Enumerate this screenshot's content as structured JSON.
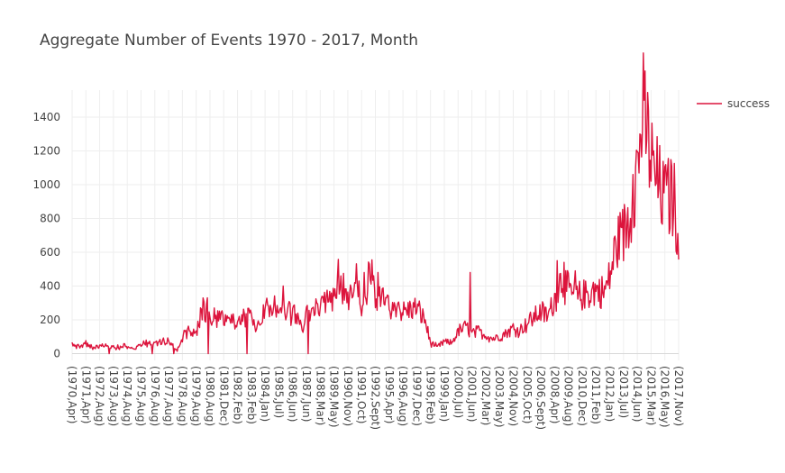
{
  "chart_data": {
    "type": "line",
    "title": "Aggregate Number of Events 1970 - 2017, Month",
    "xlabel": "",
    "ylabel": "",
    "ylim": [
      -40,
      1560
    ],
    "yticks": [
      0,
      200,
      400,
      600,
      800,
      1000,
      1200,
      1400
    ],
    "grid": true,
    "legend": "top-right",
    "series_color": "#dc143c",
    "x_tick_labels": [
      "(1970,Apr)",
      "(1971,Apr)",
      "(1972,Aug)",
      "(1973,Aug)",
      "(1974,Aug)",
      "(1975,Aug)",
      "(1976,Aug)",
      "(1977,Aug)",
      "(1978,Aug)",
      "(1979,Aug)",
      "(1980,Aug)",
      "(1981,Dec)",
      "(1982,Feb)",
      "(1983,Feb)",
      "(1984,Jan)",
      "(1985,Jul)",
      "(1986,Jun)",
      "(1987,Jun)",
      "(1988,Mar)",
      "(1989,May)",
      "(1990,Nov)",
      "(1991,Oct)",
      "(1992,Sept)",
      "(1995,Apr)",
      "(1996,Aug)",
      "(1997,Dec)",
      "(1998,Feb)",
      "(1999,Jan)",
      "(2000,Jul)",
      "(2001,Jun)",
      "(2002,Mar)",
      "(2003,May)",
      "(2004,Nov)",
      "(2005,Oct)",
      "(2006,Sept)",
      "(2008,Apr)",
      "(2009,Aug)",
      "(2010,Dec)",
      "(2011,Feb)",
      "(2012,Jan)",
      "(2013,Jul)",
      "(2014,Jun)",
      "(2015,Mar)",
      "(2016,May)",
      "(2017,Nov)"
    ],
    "series": [
      {
        "name": "success",
        "anchors": [
          [
            0,
            55
          ],
          [
            0.4,
            35
          ],
          [
            1,
            55
          ],
          [
            1.5,
            40
          ],
          [
            2,
            45
          ],
          [
            3,
            35
          ],
          [
            4,
            45
          ],
          [
            4.5,
            25
          ],
          [
            5,
            60
          ],
          [
            6,
            55
          ],
          [
            7,
            75
          ],
          [
            7.6,
            20
          ],
          [
            8,
            100
          ],
          [
            8.5,
            140
          ],
          [
            9,
            130
          ],
          [
            9.5,
            270
          ],
          [
            10,
            190
          ],
          [
            11,
            200
          ],
          [
            12,
            200
          ],
          [
            13,
            230
          ],
          [
            13.3,
            120
          ],
          [
            14,
            260
          ],
          [
            14.6,
            320
          ],
          [
            15,
            230
          ],
          [
            16,
            240
          ],
          [
            16.8,
            150
          ],
          [
            17,
            240
          ],
          [
            18,
            280
          ],
          [
            19,
            340
          ],
          [
            19.3,
            450
          ],
          [
            20,
            310
          ],
          [
            20.6,
            430
          ],
          [
            21,
            290
          ],
          [
            21.7,
            470
          ],
          [
            22,
            300
          ],
          [
            22.6,
            380
          ],
          [
            23,
            260
          ],
          [
            24,
            250
          ],
          [
            25,
            270
          ],
          [
            25.6,
            200
          ],
          [
            26,
            60
          ],
          [
            26.5,
            40
          ],
          [
            27,
            70
          ],
          [
            27.5,
            60
          ],
          [
            28,
            130
          ],
          [
            28.6,
            160
          ],
          [
            29,
            120
          ],
          [
            29.5,
            130
          ],
          [
            30,
            110
          ],
          [
            30.5,
            90
          ],
          [
            31,
            100
          ],
          [
            32,
            150
          ],
          [
            32.5,
            140
          ],
          [
            33,
            180
          ],
          [
            34,
            250
          ],
          [
            34.5,
            220
          ],
          [
            35,
            320
          ],
          [
            35.5,
            450
          ],
          [
            36,
            370
          ],
          [
            36.6,
            330
          ],
          [
            37,
            340
          ],
          [
            38,
            380
          ],
          [
            38.6,
            360
          ],
          [
            39,
            450
          ],
          [
            39.5,
            650
          ],
          [
            40,
            700
          ],
          [
            40.5,
            850
          ],
          [
            41,
            1100
          ],
          [
            41.4,
            1450
          ],
          [
            41.8,
            1250
          ],
          [
            42,
            1150
          ],
          [
            42.5,
            1000
          ],
          [
            43,
            900
          ],
          [
            43.6,
            950
          ],
          [
            44,
            700
          ],
          [
            44.5,
            780
          ],
          [
            45,
            640
          ]
        ],
        "spikes": [
          [
            2.7,
            0
          ],
          [
            5.8,
            0
          ],
          [
            7.4,
            0
          ],
          [
            9.8,
            330
          ],
          [
            9.9,
            0
          ],
          [
            10.3,
            270
          ],
          [
            12.7,
            0
          ],
          [
            15.3,
            400
          ],
          [
            17.1,
            0
          ],
          [
            19.5,
            460
          ],
          [
            21.2,
            480
          ],
          [
            22.2,
            480
          ],
          [
            28.9,
            480
          ],
          [
            35.2,
            550
          ],
          [
            35.7,
            540
          ],
          [
            36.5,
            490
          ],
          [
            39.8,
            750
          ],
          [
            40.7,
            1060
          ],
          [
            41.2,
            1300
          ],
          [
            41.5,
            1500
          ],
          [
            42.2,
            1200
          ],
          [
            43.2,
            1080
          ]
        ],
        "noise_amplitude": 0.28,
        "points_per_unit": 16
      }
    ]
  }
}
